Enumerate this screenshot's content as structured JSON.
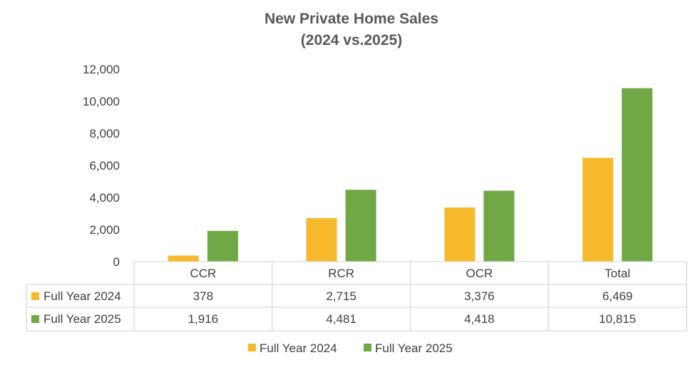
{
  "chart_data": {
    "type": "bar",
    "title_line1": "New Private Home Sales",
    "title_line2": "(2024 vs.2025)",
    "categories": [
      "CCR",
      "RCR",
      "OCR",
      "Total"
    ],
    "series": [
      {
        "name": "Full Year 2024",
        "values": [
          378,
          2715,
          3376,
          6469
        ],
        "labels": [
          "378",
          "2,715",
          "3,376",
          "6,469"
        ],
        "color": "#F6B92B"
      },
      {
        "name": "Full Year 2025",
        "values": [
          1916,
          4481,
          4418,
          10815
        ],
        "labels": [
          "1,916",
          "4,481",
          "4,418",
          "10,815"
        ],
        "color": "#70A845"
      }
    ],
    "ylim": [
      0,
      12000
    ],
    "yticks": [
      0,
      2000,
      4000,
      6000,
      8000,
      10000,
      12000
    ],
    "ytick_labels": [
      "0",
      "2,000",
      "4,000",
      "6,000",
      "8,000",
      "10,000",
      "12,000"
    ],
    "grid": false,
    "data_table": true,
    "legend_placement": "bottom-center"
  }
}
